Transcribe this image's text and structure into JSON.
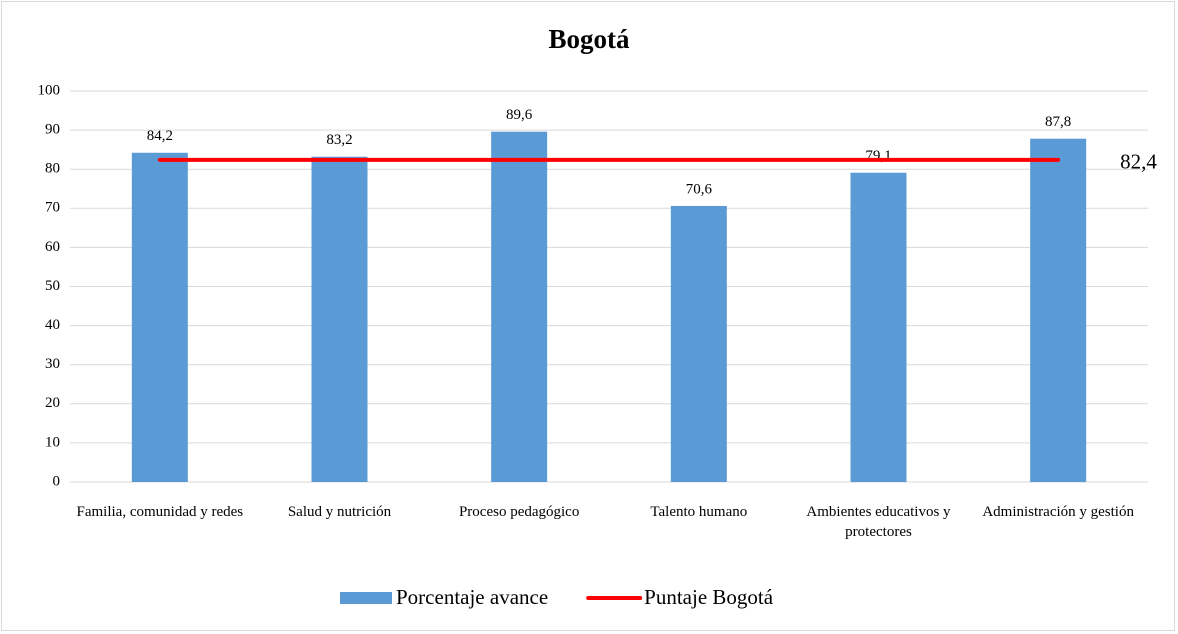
{
  "chart_data": {
    "type": "bar-line",
    "title": "Bogotá",
    "categories": [
      "Familia, comunidad y redes",
      "Salud y nutrición",
      "Proceso pedagógico",
      "Talento humano",
      "Ambientes educativos y protectores",
      "Administración y gestión"
    ],
    "series": [
      {
        "name": "Porcentaje avance",
        "type": "bar",
        "color": "#5b9bd5",
        "values": [
          84.2,
          83.2,
          89.6,
          70.6,
          79.1,
          87.8
        ],
        "value_labels": [
          "84,2",
          "83,2",
          "89,6",
          "70,6",
          "79,1",
          "87,8"
        ]
      },
      {
        "name": "Puntaje Bogotá",
        "type": "line",
        "color": "#ff0000",
        "values": [
          82.4,
          82.4,
          82.4,
          82.4,
          82.4,
          82.4
        ],
        "value_labels": [
          null,
          null,
          null,
          null,
          null,
          "82,4"
        ]
      }
    ],
    "ylim": [
      0,
      100
    ],
    "yticks": [
      0,
      10,
      20,
      30,
      40,
      50,
      60,
      70,
      80,
      90,
      100
    ],
    "grid": true,
    "legend": "bottom"
  }
}
